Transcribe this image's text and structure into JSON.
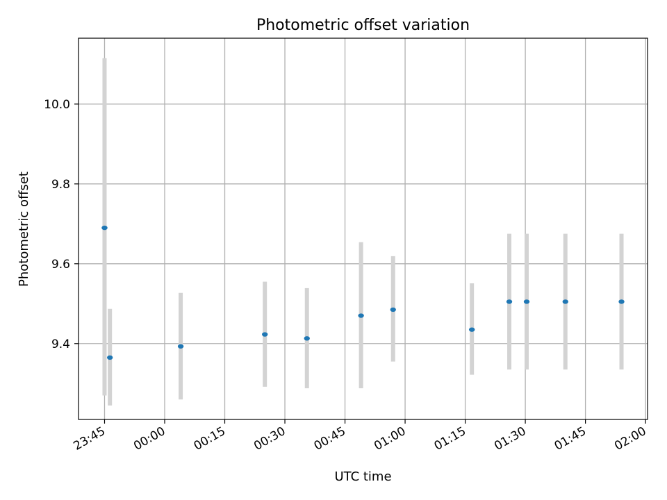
{
  "chart_data": {
    "type": "scatter",
    "title": "Photometric offset variation",
    "xlabel": "UTC time",
    "ylabel": "Photometric offset",
    "x_ticks": [
      "23:45",
      "00:00",
      "00:15",
      "00:30",
      "00:45",
      "01:00",
      "01:15",
      "01:30",
      "01:45",
      "02:00"
    ],
    "y_ticks": [
      "9.4",
      "9.6",
      "9.8",
      "10.0"
    ],
    "xlim": [
      "23:38:30",
      "02:00:30"
    ],
    "ylim": [
      9.21,
      10.165
    ],
    "grid": true,
    "colors": {
      "marker": "#1f77b4",
      "errorbar": "#d3d3d3",
      "grid": "#b0b0b0"
    },
    "points": [
      {
        "x": "23:45:00",
        "y": 9.69,
        "ylow": 9.27,
        "yhigh": 10.115
      },
      {
        "x": "23:46:20",
        "y": 9.365,
        "ylow": 9.245,
        "yhigh": 9.487
      },
      {
        "x": "00:04:00",
        "y": 9.393,
        "ylow": 9.26,
        "yhigh": 9.527
      },
      {
        "x": "00:25:00",
        "y": 9.423,
        "ylow": 9.292,
        "yhigh": 9.555
      },
      {
        "x": "00:35:30",
        "y": 9.413,
        "ylow": 9.288,
        "yhigh": 9.539
      },
      {
        "x": "00:49:00",
        "y": 9.47,
        "ylow": 9.288,
        "yhigh": 9.654
      },
      {
        "x": "00:57:00",
        "y": 9.485,
        "ylow": 9.355,
        "yhigh": 9.619
      },
      {
        "x": "01:16:40",
        "y": 9.435,
        "ylow": 9.322,
        "yhigh": 9.551
      },
      {
        "x": "01:26:00",
        "y": 9.505,
        "ylow": 9.335,
        "yhigh": 9.675
      },
      {
        "x": "01:30:20",
        "y": 9.505,
        "ylow": 9.335,
        "yhigh": 9.675
      },
      {
        "x": "01:40:00",
        "y": 9.505,
        "ylow": 9.335,
        "yhigh": 9.675
      },
      {
        "x": "01:54:00",
        "y": 9.505,
        "ylow": 9.335,
        "yhigh": 9.675
      }
    ]
  }
}
